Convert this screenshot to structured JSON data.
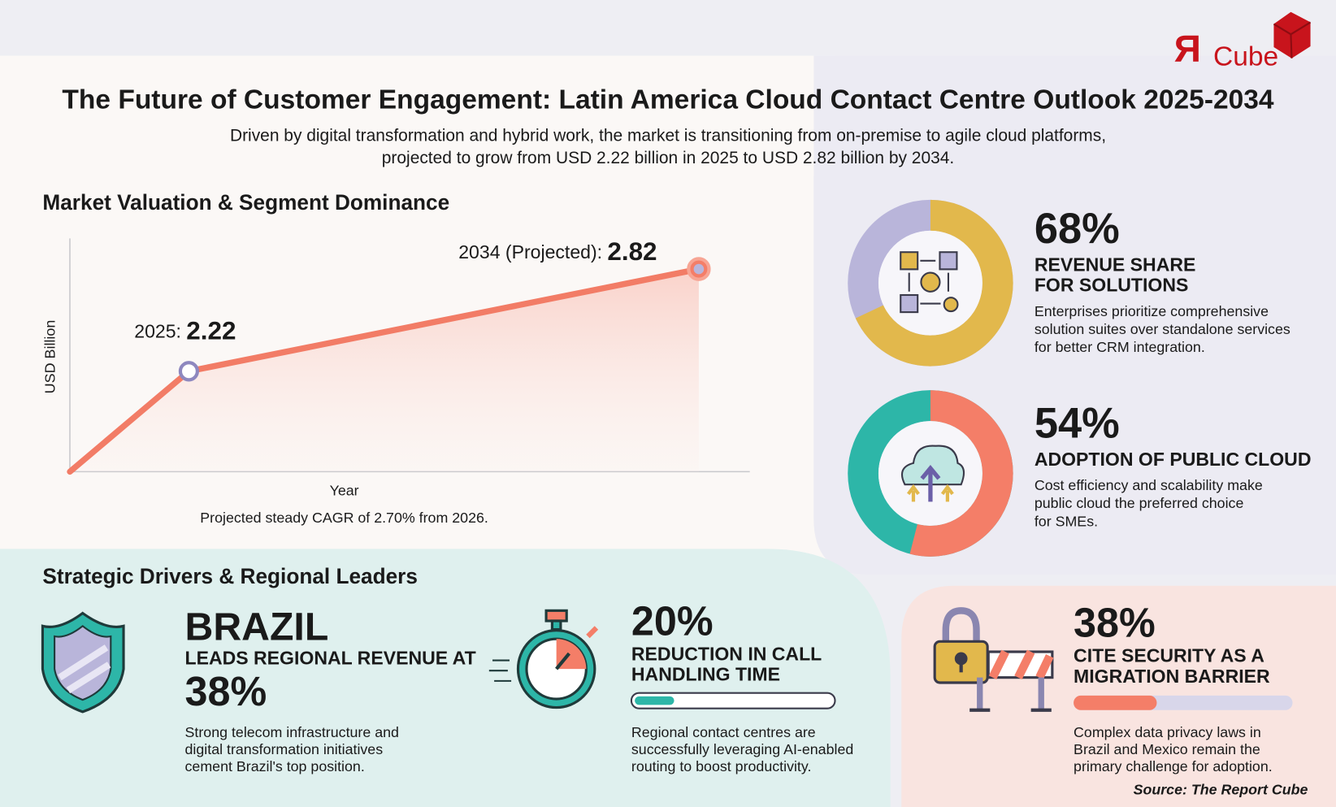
{
  "logo": {
    "mark": "Я",
    "text": "Cube"
  },
  "header": {
    "title": "The Future of Customer Engagement: Latin America Cloud Contact Centre Outlook 2025-2034",
    "subtitle": [
      "Driven by digital transformation and hybrid work, the market is transitioning from on-premise to agile cloud platforms,",
      "projected to grow from USD 2.22 billion in 2025 to USD 2.82 billion by 2034."
    ]
  },
  "chart_section": {
    "heading": "Market Valuation & Segment Dominance"
  },
  "chart_data": {
    "type": "line",
    "x_label": "Year",
    "y_label": "USD Billion",
    "x": [
      2025,
      2034
    ],
    "values": [
      2.22,
      2.82
    ],
    "point_labels": [
      "2025:",
      "2034 (Projected):"
    ],
    "xlim": [
      2022.9,
      2034.9
    ],
    "ylim": [
      1.63,
      3.0
    ],
    "color": "#f27c66",
    "note": "Projected steady CAGR of 2.70% from 2026."
  },
  "highlights": [
    {
      "value": 68,
      "value_label": "68%",
      "color": "#e2b84c",
      "rest_color": "#b9b5da",
      "heading": [
        "REVENUE SHARE",
        "FOR SOLUTIONS"
      ],
      "description": [
        "Enterprises prioritize comprehensive",
        "solution suites over standalone services",
        "for better CRM integration."
      ]
    },
    {
      "value": 54,
      "value_label": "54%",
      "color": "#f47e68",
      "rest_color": "#2db6a8",
      "heading": [
        "ADOPTION OF PUBLIC CLOUD"
      ],
      "description": [
        "Cost efficiency and scalability make",
        "public cloud the preferred choice",
        "for SMEs."
      ]
    }
  ],
  "drivers": {
    "heading": "Strategic Drivers & Regional Leaders",
    "brazil": {
      "title": "BRAZIL",
      "subtitle": "LEADS REGIONAL REVENUE AT",
      "value_label": "38%",
      "description": [
        "Strong telecom infrastructure and",
        "digital transformation initiatives",
        "cement Brazil's top position."
      ]
    },
    "handling": {
      "value": 20,
      "value_label": "20%",
      "color": "#2db6a8",
      "heading": [
        "REDUCTION IN CALL",
        "HANDLING TIME"
      ],
      "description": [
        "Regional contact centres are",
        "successfully leveraging AI-enabled",
        "routing to boost productivity."
      ]
    },
    "security": {
      "value": 38,
      "value_label": "38%",
      "color": "#f47e68",
      "heading": [
        "CITE SECURITY AS A",
        "MIGRATION BARRIER"
      ],
      "description": [
        "Complex data privacy laws in",
        "Brazil and Mexico remain the",
        "primary challenge for adoption."
      ]
    }
  },
  "source": "Source: The Report Cube"
}
